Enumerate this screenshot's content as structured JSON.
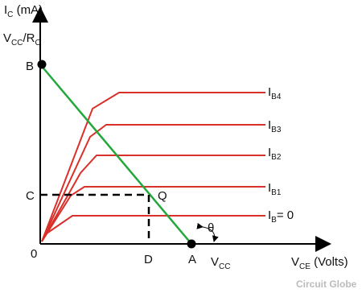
{
  "axes": {
    "y_label": [
      {
        "text": "I"
      },
      {
        "text": "C",
        "sub": true
      },
      {
        "text": " (mA)"
      }
    ],
    "x_label": [
      {
        "text": "V"
      },
      {
        "text": "CE",
        "sub": true
      },
      {
        "text": " (Volts)"
      }
    ],
    "y_intercept": [
      {
        "text": "V"
      },
      {
        "text": "CC",
        "sub": true
      },
      {
        "text": "/R"
      },
      {
        "text": "C",
        "sub": true
      }
    ],
    "x_intercept": [
      {
        "text": "V"
      },
      {
        "text": "CC",
        "sub": true
      }
    ]
  },
  "points": {
    "B": "B",
    "C": "C",
    "origin": "0",
    "D": "D",
    "A": "A",
    "Q": "Q"
  },
  "angle": "θ",
  "curves": [
    [
      {
        "text": "I"
      },
      {
        "text": "B4",
        "sub": true
      }
    ],
    [
      {
        "text": "I"
      },
      {
        "text": "B3",
        "sub": true
      }
    ],
    [
      {
        "text": "I"
      },
      {
        "text": "B2",
        "sub": true
      }
    ],
    [
      {
        "text": "I"
      },
      {
        "text": "B1",
        "sub": true
      }
    ],
    [
      {
        "text": "I"
      },
      {
        "text": "B",
        "sub": true
      },
      {
        "text": "= 0"
      }
    ]
  ],
  "watermark": "Circuit Globe"
}
